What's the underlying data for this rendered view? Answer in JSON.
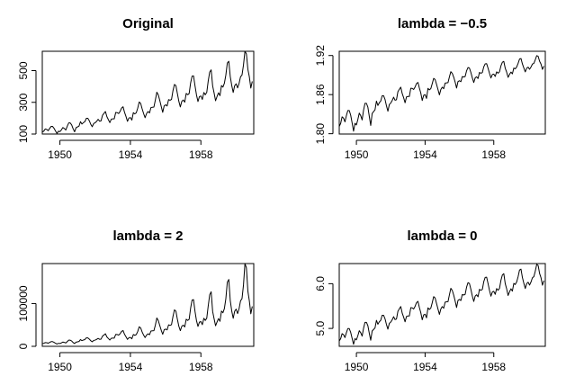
{
  "chart_data": [
    {
      "type": "line",
      "title": "Original",
      "xlabel": "",
      "ylabel": "",
      "xlim": [
        1949,
        1961
      ],
      "ylim": [
        100,
        622
      ],
      "x_ticks": [
        1950,
        1954,
        1958
      ],
      "y_ticks": [
        100,
        300,
        500
      ],
      "series": [
        {
          "x_start": 1949,
          "x_step": 0.08333333,
          "values": [
            112,
            118,
            132,
            129,
            121,
            135,
            148,
            148,
            136,
            119,
            104,
            118,
            115,
            126,
            141,
            135,
            125,
            149,
            170,
            170,
            158,
            133,
            114,
            140,
            145,
            150,
            178,
            163,
            172,
            178,
            199,
            199,
            184,
            162,
            146,
            166,
            171,
            180,
            193,
            181,
            183,
            218,
            230,
            242,
            209,
            191,
            172,
            194,
            196,
            196,
            236,
            235,
            229,
            243,
            264,
            272,
            237,
            211,
            180,
            201,
            204,
            188,
            235,
            227,
            234,
            264,
            302,
            293,
            259,
            229,
            203,
            229,
            242,
            233,
            267,
            269,
            270,
            315,
            364,
            347,
            312,
            274,
            237,
            278,
            284,
            277,
            317,
            313,
            318,
            374,
            413,
            405,
            355,
            306,
            271,
            306,
            315,
            301,
            356,
            348,
            355,
            422,
            465,
            467,
            404,
            347,
            305,
            336,
            340,
            318,
            362,
            348,
            363,
            435,
            491,
            505,
            404,
            359,
            310,
            337,
            360,
            342,
            406,
            396,
            420,
            472,
            548,
            559,
            463,
            407,
            362,
            405,
            417,
            391,
            419,
            461,
            472,
            535,
            622,
            606,
            508,
            461,
            390,
            432
          ]
        }
      ]
    },
    {
      "type": "line",
      "title": "lambda = −0.5",
      "xlabel": "",
      "ylabel": "",
      "xlim": [
        1949,
        1961
      ],
      "ylim": [
        1.7995,
        1.9265
      ],
      "x_ticks": [
        1950,
        1954,
        1958
      ],
      "y_ticks": [
        1.8,
        1.86,
        1.92
      ],
      "y_tick_labels": [
        "1.80",
        "1.86",
        "1.92"
      ],
      "series": [
        {
          "x_start": 1949,
          "x_step": 0.08333333,
          "transform": "boxcox-0.5",
          "values_source": "Original"
        }
      ]
    },
    {
      "type": "line",
      "title": "lambda = 2",
      "xlabel": "",
      "ylabel": "",
      "xlim": [
        1949,
        1961
      ],
      "ylim": [
        0,
        193442
      ],
      "x_ticks": [
        1950,
        1954,
        1958
      ],
      "y_ticks": [
        0,
        100000
      ],
      "y_tick_labels": [
        "0",
        "100000"
      ],
      "series": [
        {
          "x_start": 1949,
          "x_step": 0.08333333,
          "transform": "boxcox2",
          "values_source": "Original"
        }
      ]
    },
    {
      "type": "line",
      "title": "lambda = 0",
      "xlabel": "",
      "ylabel": "",
      "xlim": [
        1949,
        1961
      ],
      "ylim": [
        4.6,
        6.45
      ],
      "x_ticks": [
        1950,
        1954,
        1958
      ],
      "y_ticks": [
        5.0,
        6.0
      ],
      "y_tick_labels": [
        "5.0",
        "6.0"
      ],
      "series": [
        {
          "x_start": 1949,
          "x_step": 0.08333333,
          "transform": "log",
          "values_source": "Original"
        }
      ]
    }
  ]
}
